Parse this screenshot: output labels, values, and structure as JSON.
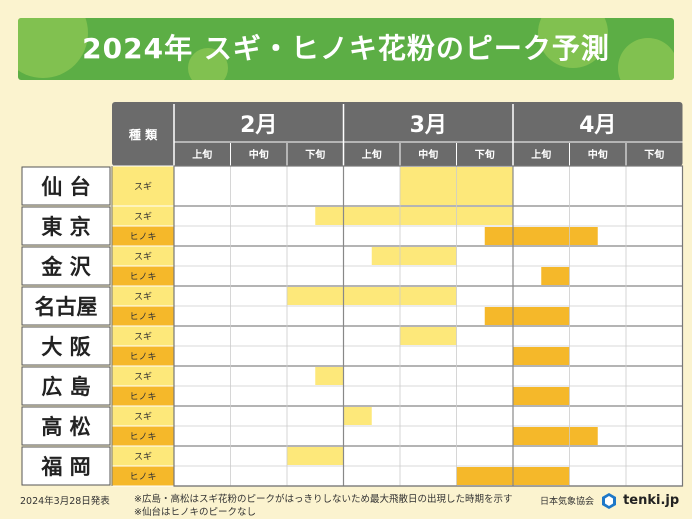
{
  "title": "2024年 スギ・ヒノキ花粉のピーク予測",
  "header": {
    "type_label": "種 類",
    "months": [
      "2月",
      "3月",
      "4月"
    ],
    "periods": [
      "上旬",
      "中旬",
      "下旬"
    ]
  },
  "species": {
    "sugi": "スギ",
    "hinoki": "ヒノキ"
  },
  "footer": {
    "date": "2024年3月28日発表",
    "note1": "※広島・高松はスギ花粉のピークがはっきりしないため最大飛散日の出現した時期を示す",
    "note2": "※仙台はヒノキのピークなし",
    "org": "日本気象協会",
    "brand": "tenki.jp"
  },
  "colors": {
    "sugi": "#fde87a",
    "hinoki": "#f5b82a",
    "header": "#6b6b6b",
    "banner": "#5cae45"
  },
  "chart_data": {
    "type": "table",
    "columns": [
      "2月上旬",
      "2月中旬",
      "2月下旬",
      "3月上旬",
      "3月中旬",
      "3月下旬",
      "4月上旬",
      "4月中旬",
      "4月下旬"
    ],
    "cities": [
      {
        "name": "仙台",
        "sugi": [
          4.0,
          6.0
        ],
        "hinoki": null
      },
      {
        "name": "東京",
        "sugi": [
          2.5,
          6.0
        ],
        "hinoki": [
          5.5,
          7.5
        ]
      },
      {
        "name": "金沢",
        "sugi": [
          3.5,
          5.0
        ],
        "hinoki": [
          6.5,
          7.0
        ]
      },
      {
        "name": "名古屋",
        "sugi": [
          2.0,
          5.0
        ],
        "hinoki": [
          5.5,
          7.0
        ]
      },
      {
        "name": "大阪",
        "sugi": [
          4.0,
          5.0
        ],
        "hinoki": [
          6.0,
          7.0
        ]
      },
      {
        "name": "広島",
        "sugi": [
          2.5,
          3.0
        ],
        "hinoki": [
          6.0,
          7.0
        ]
      },
      {
        "name": "高松",
        "sugi": [
          3.0,
          3.5
        ],
        "hinoki": [
          6.0,
          7.5
        ]
      },
      {
        "name": "福岡",
        "sugi": [
          2.0,
          3.0
        ],
        "hinoki": [
          5.0,
          7.0
        ]
      }
    ]
  }
}
